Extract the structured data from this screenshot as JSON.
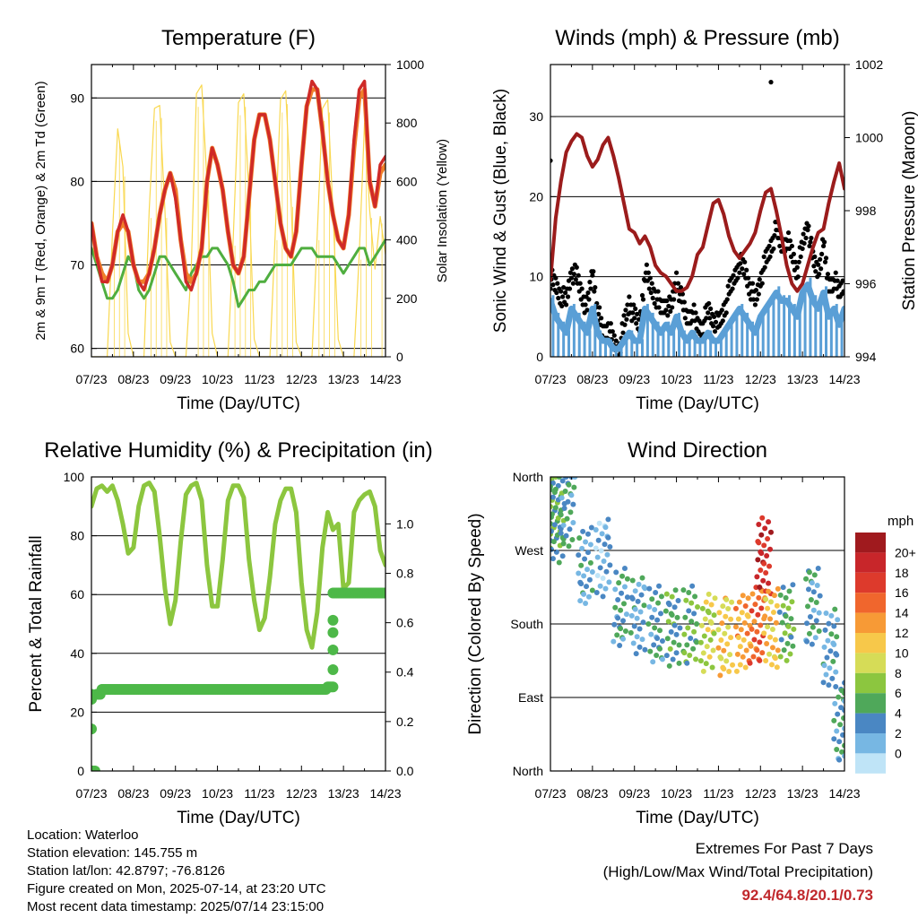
{
  "footer": {
    "location": "Location: Waterloo",
    "elevation": "Station elevation: 145.755 m",
    "latlon": "Station lat/lon: 42.8797; -76.8126",
    "created": "Figure created on Mon, 2025-07-14, at 23:20 UTC",
    "recent": "Most recent data timestamp: 2025/07/14 23:15:00",
    "extremes_title": "Extremes For Past 7 Days",
    "extremes_sub": "(High/Low/Max Wind/Total Precipitation)",
    "extremes_values": "92.4/64.8/20.1/0.73"
  },
  "colors": {
    "temp_2m": "#cf2a27",
    "temp_9m": "#f07f2a",
    "dewpoint": "#4fae3f",
    "solar": "#f9d850",
    "wind": "#5a9fd6",
    "gust": "#000000",
    "pressure": "#9b1c1c",
    "rh": "#8cc63f",
    "precip": "#4db848"
  },
  "chart_data": [
    {
      "type": "line",
      "title": "Temperature (F)",
      "xlabel": "Time (Day/UTC)",
      "ylabel": "2m & 9m T (Red, Orange) & 2m Td (Green)",
      "y2label": "Solar Insolation (Yellow)",
      "x_ticks": [
        "07/23",
        "08/23",
        "09/23",
        "10/23",
        "11/23",
        "12/23",
        "13/23",
        "14/23"
      ],
      "ylim": [
        59,
        94
      ],
      "yticks": [
        60,
        70,
        80,
        90
      ],
      "y2lim": [
        0,
        1000
      ],
      "y2ticks": [
        0,
        200,
        400,
        600,
        800,
        1000
      ],
      "grid": true,
      "x_hours": [
        0,
        3,
        6,
        9,
        12,
        15,
        18,
        21,
        24,
        27,
        30,
        33,
        36,
        39,
        42,
        45,
        48,
        51,
        54,
        57,
        60,
        63,
        66,
        69,
        72,
        75,
        78,
        81,
        84,
        87,
        90,
        93,
        96,
        99,
        102,
        105,
        108,
        111,
        114,
        117,
        120,
        123,
        126,
        129,
        132,
        135,
        138,
        141,
        144,
        147,
        150,
        153,
        156,
        159,
        162,
        165,
        168
      ],
      "series": [
        {
          "name": "2m T",
          "values": [
            75,
            71,
            68,
            68,
            70,
            74,
            76,
            74,
            70,
            68,
            67,
            69,
            72,
            76,
            79,
            81,
            78,
            73,
            68,
            67,
            69,
            72,
            80,
            84,
            82,
            79,
            74,
            70,
            69,
            71,
            78,
            85,
            88,
            88,
            85,
            80,
            75,
            72,
            71,
            74,
            82,
            89,
            92,
            91,
            86,
            80,
            76,
            73,
            72,
            76,
            85,
            91,
            92,
            80,
            77,
            82,
            83
          ]
        },
        {
          "name": "9m T",
          "values": [
            75,
            71,
            69,
            68,
            70,
            74,
            75,
            74,
            70,
            68,
            68,
            69,
            72,
            76,
            79,
            81,
            79,
            73,
            69,
            68,
            69,
            72,
            80,
            84,
            82,
            79,
            74,
            70,
            69,
            71,
            78,
            85,
            88,
            88,
            85,
            80,
            75,
            72,
            71,
            74,
            82,
            89,
            91,
            91,
            86,
            80,
            76,
            73,
            72,
            76,
            84,
            90,
            91,
            80,
            77,
            81,
            82
          ]
        },
        {
          "name": "2m Td",
          "values": [
            72,
            70,
            68,
            66,
            66,
            67,
            69,
            71,
            70,
            67,
            66,
            67,
            69,
            71,
            71,
            70,
            69,
            68,
            67,
            69,
            70,
            71,
            71,
            72,
            72,
            71,
            70,
            68,
            65,
            66,
            67,
            67,
            68,
            68,
            69,
            70,
            70,
            70,
            70,
            71,
            72,
            72,
            72,
            71,
            71,
            71,
            71,
            70,
            69,
            70,
            71,
            72,
            72,
            70,
            71,
            72,
            73
          ]
        },
        {
          "name": "Solar Insolation",
          "values": [
            0,
            0,
            0,
            0,
            420,
            780,
            650,
            80,
            0,
            0,
            0,
            500,
            850,
            860,
            500,
            50,
            0,
            0,
            0,
            300,
            900,
            930,
            600,
            80,
            0,
            0,
            0,
            400,
            870,
            900,
            560,
            60,
            0,
            0,
            0,
            420,
            880,
            910,
            540,
            50,
            0,
            0,
            0,
            420,
            850,
            880,
            500,
            60,
            0,
            0,
            0,
            350,
            800,
            500,
            300,
            480,
            350
          ]
        }
      ]
    },
    {
      "type": "line",
      "title": "Winds (mph) & Pressure (mb)",
      "xlabel": "Time (Day/UTC)",
      "ylabel": "Sonic Wind & Gust (Blue, Black)",
      "y2label": "Station Pressure (Maroon)",
      "x_ticks": [
        "07/23",
        "08/23",
        "09/23",
        "10/23",
        "11/23",
        "12/23",
        "13/23",
        "14/23"
      ],
      "ylim": [
        0,
        36.5
      ],
      "yticks": [
        0,
        10,
        20,
        30
      ],
      "y2lim": [
        994,
        1002
      ],
      "y2ticks": [
        994,
        996,
        998,
        1000,
        1002
      ],
      "grid": true,
      "x_hours": [
        0,
        3,
        6,
        9,
        12,
        15,
        18,
        21,
        24,
        27,
        30,
        33,
        36,
        39,
        42,
        45,
        48,
        51,
        54,
        57,
        60,
        63,
        66,
        69,
        72,
        75,
        78,
        81,
        84,
        87,
        90,
        93,
        96,
        99,
        102,
        105,
        108,
        111,
        114,
        117,
        120,
        123,
        126,
        129,
        132,
        135,
        138,
        141,
        144,
        147,
        150,
        153,
        156,
        159,
        162,
        165,
        168
      ],
      "series": [
        {
          "name": "Sonic Wind",
          "values": [
            7,
            5,
            4,
            3,
            6,
            5,
            4,
            3,
            6,
            3,
            2,
            2,
            1,
            1,
            2,
            3,
            2,
            2,
            6,
            5,
            4,
            3,
            4,
            3,
            5,
            3,
            2,
            3,
            2,
            2,
            3,
            2,
            2,
            3,
            4,
            5,
            6,
            5,
            4,
            3,
            5,
            6,
            7,
            8,
            7,
            7,
            6,
            5,
            8,
            9,
            7,
            6,
            8,
            5,
            6,
            4,
            6
          ]
        },
        {
          "name": "Gust",
          "values": [
            10,
            9,
            8,
            7,
            11,
            10,
            8,
            6,
            11,
            6,
            3,
            4,
            2,
            1,
            4,
            7,
            5,
            4,
            11,
            9,
            8,
            6,
            7,
            6,
            10,
            7,
            5,
            6,
            4,
            4,
            6,
            5,
            4,
            6,
            8,
            10,
            12,
            11,
            9,
            7,
            10,
            12,
            14,
            16,
            14,
            15,
            13,
            11,
            14,
            17,
            12,
            11,
            14,
            9,
            10,
            8,
            10
          ]
        },
        {
          "name": "Station Pressure",
          "values": [
            996.1,
            997.8,
            998.8,
            999.6,
            999.9,
            1000.1,
            1000.0,
            999.5,
            999.2,
            999.4,
            999.8,
            1000.0,
            999.5,
            998.9,
            998.2,
            997.5,
            997.4,
            997.1,
            997.3,
            997.0,
            996.5,
            996.3,
            996.2,
            996.0,
            995.8,
            995.8,
            995.9,
            996.2,
            996.8,
            997.0,
            997.6,
            998.2,
            998.3,
            997.9,
            997.3,
            996.9,
            996.7,
            996.9,
            997.1,
            997.4,
            998.0,
            998.5,
            998.6,
            998.0,
            997.3,
            996.5,
            996.0,
            995.8,
            996.0,
            996.5,
            997.0,
            997.4,
            997.5,
            998.2,
            998.8,
            999.3,
            998.6
          ]
        }
      ],
      "outliers": [
        {
          "x_hour": 0,
          "y": 24.5
        },
        {
          "x_hour": 126,
          "y": 34.3
        }
      ]
    },
    {
      "type": "line",
      "title": "Relative Humidity (%) & Precipitation (in)",
      "xlabel": "Time (Day/UTC)",
      "ylabel": "Percent & Total Rainfall",
      "x_ticks": [
        "07/23",
        "08/23",
        "09/23",
        "10/23",
        "11/23",
        "12/23",
        "13/23",
        "14/23"
      ],
      "ylim": [
        0,
        100
      ],
      "yticks": [
        0,
        20,
        40,
        60,
        80,
        100
      ],
      "y2lim": [
        0,
        1.19
      ],
      "y2ticks": [
        0.0,
        0.2,
        0.4,
        0.6,
        0.8,
        1.0
      ],
      "grid": true,
      "x_hours": [
        0,
        3,
        6,
        9,
        12,
        15,
        18,
        21,
        24,
        27,
        30,
        33,
        36,
        39,
        42,
        45,
        48,
        51,
        54,
        57,
        60,
        63,
        66,
        69,
        72,
        75,
        78,
        81,
        84,
        87,
        90,
        93,
        96,
        99,
        102,
        105,
        108,
        111,
        114,
        117,
        120,
        123,
        126,
        129,
        132,
        135,
        138,
        141,
        144,
        147,
        150,
        153,
        156,
        159,
        162,
        165,
        168
      ],
      "series": [
        {
          "name": "Relative Humidity",
          "values": [
            90,
            96,
            97,
            95,
            97,
            92,
            84,
            74,
            76,
            90,
            97,
            98,
            95,
            80,
            62,
            50,
            58,
            78,
            94,
            97,
            98,
            92,
            70,
            56,
            56,
            72,
            92,
            97,
            97,
            93,
            72,
            58,
            48,
            52,
            66,
            84,
            92,
            96,
            96,
            88,
            64,
            48,
            42,
            54,
            76,
            88,
            82,
            84,
            62,
            64,
            88,
            92,
            94,
            95,
            90,
            75,
            70
          ]
        },
        {
          "name": "Total Precipitation",
          "values": [
            0,
            0.31,
            0.33,
            0.33,
            0.33,
            0.33,
            0.33,
            0.33,
            0.33,
            0.33,
            0.33,
            0.33,
            0.33,
            0.33,
            0.33,
            0.33,
            0.33,
            0.33,
            0.33,
            0.33,
            0.33,
            0.33,
            0.33,
            0.33,
            0.33,
            0.33,
            0.33,
            0.33,
            0.33,
            0.33,
            0.33,
            0.33,
            0.33,
            0.33,
            0.33,
            0.33,
            0.33,
            0.33,
            0.33,
            0.33,
            0.33,
            0.33,
            0.33,
            0.33,
            0.33,
            0.34,
            0.72,
            0.72,
            0.72,
            0.72,
            0.72,
            0.72,
            0.72,
            0.72,
            0.72,
            0.72,
            0.72
          ]
        }
      ]
    },
    {
      "type": "scatter",
      "title": "Wind Direction",
      "xlabel": "Time (Day/UTC)",
      "ylabel": "Direction (Colored By Speed)",
      "x_ticks": [
        "07/23",
        "08/23",
        "09/23",
        "10/23",
        "11/23",
        "12/23",
        "13/23",
        "14/23"
      ],
      "y_ticks": [
        "North",
        "East",
        "South",
        "West",
        "North"
      ],
      "ylim": [
        0,
        360
      ],
      "grid": true,
      "legend": {
        "title": "mph",
        "placement": "right",
        "labels": [
          "20+",
          "18",
          "16",
          "14",
          "12",
          "10",
          "8",
          "6",
          "4",
          "2",
          "0"
        ],
        "colors": [
          "#a01a1e",
          "#c8262a",
          "#dd3a2c",
          "#f0662d",
          "#f79a36",
          "#f7c84a",
          "#d6dc57",
          "#8cc63f",
          "#4fa85a",
          "#4a87c3",
          "#77b7e3",
          "#bfe4f7"
        ]
      },
      "points_summary": [
        {
          "x_hour": 2,
          "dir": 330,
          "speed": 6
        },
        {
          "x_hour": 4,
          "dir": 300,
          "speed": 5
        },
        {
          "x_hour": 10,
          "dir": 320,
          "speed": 4
        },
        {
          "x_hour": 20,
          "dir": 250,
          "speed": 3
        },
        {
          "x_hour": 30,
          "dir": 260,
          "speed": 2
        },
        {
          "x_hour": 40,
          "dir": 200,
          "speed": 4
        },
        {
          "x_hour": 50,
          "dir": 190,
          "speed": 3
        },
        {
          "x_hour": 60,
          "dir": 180,
          "speed": 4
        },
        {
          "x_hour": 70,
          "dir": 175,
          "speed": 5
        },
        {
          "x_hour": 80,
          "dir": 180,
          "speed": 6
        },
        {
          "x_hour": 90,
          "dir": 170,
          "speed": 9
        },
        {
          "x_hour": 100,
          "dir": 165,
          "speed": 11
        },
        {
          "x_hour": 110,
          "dir": 170,
          "speed": 13
        },
        {
          "x_hour": 118,
          "dir": 180,
          "speed": 16
        },
        {
          "x_hour": 122,
          "dir": 265,
          "speed": 19
        },
        {
          "x_hour": 126,
          "dir": 175,
          "speed": 12
        },
        {
          "x_hour": 135,
          "dir": 180,
          "speed": 6
        },
        {
          "x_hour": 150,
          "dir": 200,
          "speed": 4
        },
        {
          "x_hour": 160,
          "dir": 150,
          "speed": 3
        },
        {
          "x_hour": 166,
          "dir": 60,
          "speed": 4
        }
      ]
    }
  ]
}
